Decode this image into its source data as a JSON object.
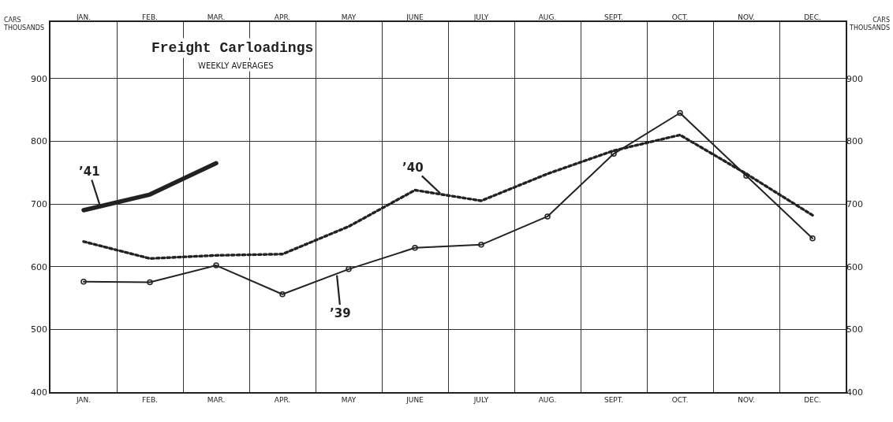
{
  "chart_data": {
    "type": "line",
    "title": "Freight Carloadings",
    "subtitle": "WEEKLY AVERAGES",
    "ylabel": "CARS THOUSANDS",
    "y2label": "CARS THOUSANDS",
    "categories": [
      "JAN.",
      "FEB.",
      "MAR.",
      "APR.",
      "MAY",
      "JUNE",
      "JULY",
      "AUG.",
      "SEPT.",
      "OCT.",
      "NOV.",
      "DEC."
    ],
    "series": [
      {
        "name": "’39",
        "color": "#222222",
        "marker": "circle",
        "line_style": "solid",
        "values": [
          576,
          575,
          602,
          556,
          596,
          630,
          635,
          680,
          780,
          845,
          745,
          645
        ]
      },
      {
        "name": "’40",
        "color": "#222222",
        "line_style": "dotted",
        "values": [
          640,
          613,
          618,
          620,
          664,
          722,
          705,
          748,
          785,
          810,
          748,
          682
        ]
      },
      {
        "name": "’41",
        "color": "#222222",
        "line_style": "solid",
        "values": [
          690,
          715,
          765,
          null,
          null,
          null,
          null,
          null,
          null,
          null,
          null,
          null
        ]
      }
    ],
    "ylim": [
      400,
      990
    ],
    "yticks": [
      400,
      500,
      600,
      700,
      800,
      900
    ],
    "y2lim": [
      400,
      990
    ],
    "y2ticks": [
      400,
      500,
      600,
      700,
      800,
      900
    ],
    "grid": true
  }
}
